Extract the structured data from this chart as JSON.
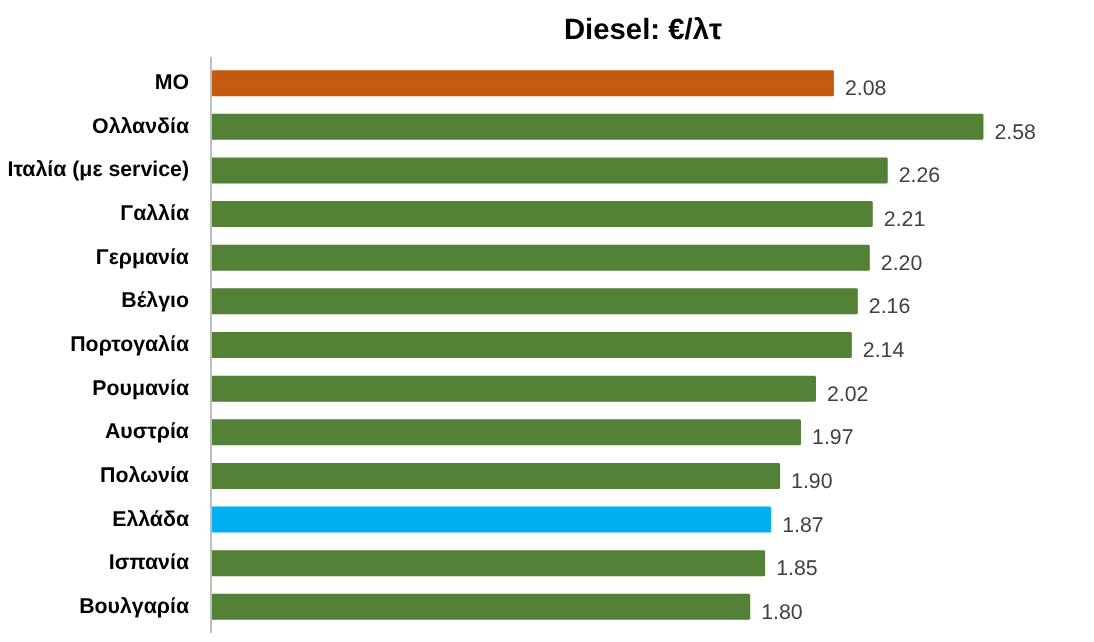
{
  "chart_data": {
    "type": "bar",
    "orientation": "horizontal",
    "title": "Diesel: €/λτ",
    "categories": [
      "ΜΟ",
      "Ολλανδία",
      "Ιταλία (με service)",
      "Γαλλία",
      "Γερμανία",
      "Βέλγιο",
      "Πορτογαλία",
      "Ρουμανία",
      "Αυστρία",
      "Πολωνία",
      "Ελλάδα",
      "Ισπανία",
      "Βουλγαρία"
    ],
    "values": [
      2.08,
      2.58,
      2.26,
      2.21,
      2.2,
      2.16,
      2.14,
      2.02,
      1.97,
      1.9,
      1.87,
      1.85,
      1.8
    ],
    "value_labels": [
      "2.08",
      "2.58",
      "2.26",
      "2.21",
      "2.20",
      "2.16",
      "2.14",
      "2.02",
      "1.97",
      "1.90",
      "1.87",
      "1.85",
      "1.80"
    ],
    "colors": [
      "#c55a11",
      "#538135",
      "#538135",
      "#538135",
      "#538135",
      "#538135",
      "#538135",
      "#538135",
      "#538135",
      "#538135",
      "#00b0f0",
      "#538135",
      "#538135"
    ],
    "tick_labels": "y"
  }
}
